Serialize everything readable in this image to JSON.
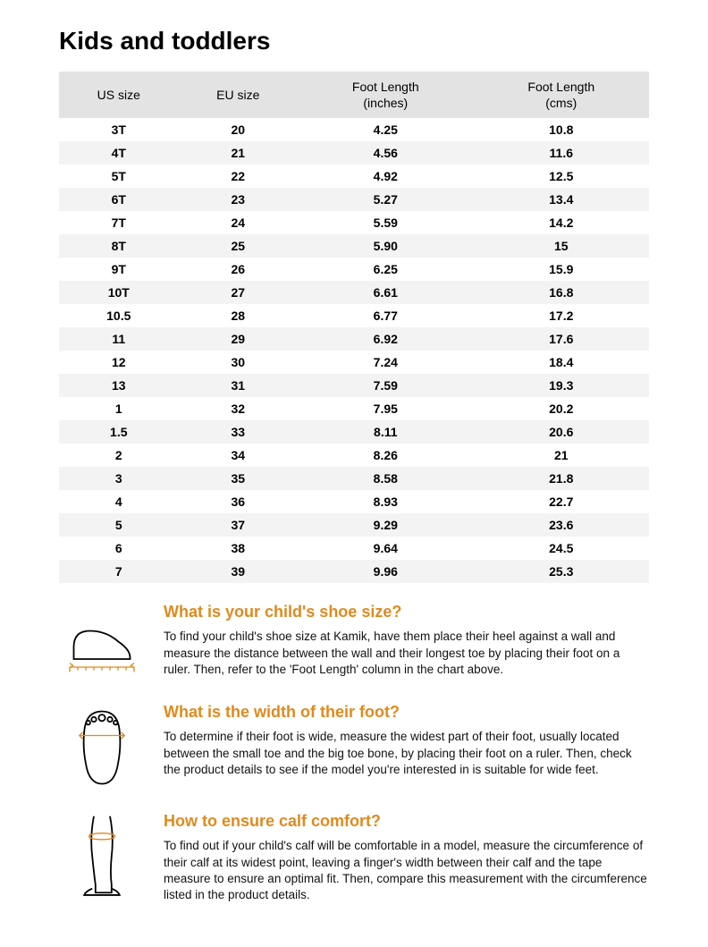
{
  "title": "Kids and toddlers",
  "table": {
    "columns": [
      "US size",
      "EU size",
      "Foot Length\n(inches)",
      "Foot Length\n(cms)"
    ],
    "rows": [
      [
        "3T",
        "20",
        "4.25",
        "10.8"
      ],
      [
        "4T",
        "21",
        "4.56",
        "11.6"
      ],
      [
        "5T",
        "22",
        "4.92",
        "12.5"
      ],
      [
        "6T",
        "23",
        "5.27",
        "13.4"
      ],
      [
        "7T",
        "24",
        "5.59",
        "14.2"
      ],
      [
        "8T",
        "25",
        "5.90",
        "15"
      ],
      [
        "9T",
        "26",
        "6.25",
        "15.9"
      ],
      [
        "10T",
        "27",
        "6.61",
        "16.8"
      ],
      [
        "10.5",
        "28",
        "6.77",
        "17.2"
      ],
      [
        "11",
        "29",
        "6.92",
        "17.6"
      ],
      [
        "12",
        "30",
        "7.24",
        "18.4"
      ],
      [
        "13",
        "31",
        "7.59",
        "19.3"
      ],
      [
        "1",
        "32",
        "7.95",
        "20.2"
      ],
      [
        "1.5",
        "33",
        "8.11",
        "20.6"
      ],
      [
        "2",
        "34",
        "8.26",
        "21"
      ],
      [
        "3",
        "35",
        "8.58",
        "21.8"
      ],
      [
        "4",
        "36",
        "8.93",
        "22.7"
      ],
      [
        "5",
        "37",
        "9.29",
        "23.6"
      ],
      [
        "6",
        "38",
        "9.64",
        "24.5"
      ],
      [
        "7",
        "39",
        "9.96",
        "25.3"
      ]
    ],
    "header_bg": "#e3e3e3",
    "row_alt_bg": "#f3f3f3",
    "text_color": "#000000",
    "font_size": 14,
    "column_widths": [
      "25%",
      "25%",
      "25%",
      "25%"
    ]
  },
  "sections": [
    {
      "heading": "What is your child's shoe size?",
      "body": "To find your child's shoe size at Kamik, have them place their heel against a wall and measure the distance between the wall and their longest toe by placing their foot on a ruler. Then, refer to the 'Foot Length' column in the chart above.",
      "icon": "foot-side-ruler"
    },
    {
      "heading": "What is the width of their foot?",
      "body": "To determine if their foot is wide, measure the widest part of their foot, usually located between the small toe and the big toe bone, by placing their foot on a ruler. Then, check the product details to see if the model you're interested in is suitable for wide feet.",
      "icon": "foot-top-width"
    },
    {
      "heading": "How to ensure calf comfort?",
      "body": "To find out if your child's calf will be comfortable in a model, measure the circumference of their calf at its widest point, leaving a finger's width between their calf and the tape measure to ensure an optimal fit. Then, compare this measurement with the circumference listed in the product details.",
      "icon": "leg-calf-measure"
    }
  ],
  "styling": {
    "heading_color": "#e08a1e",
    "accent_color": "#e08a1e",
    "body_bg": "#ffffff",
    "title_fontsize": 28,
    "section_heading_fontsize": 18,
    "body_fontsize": 13.5
  }
}
